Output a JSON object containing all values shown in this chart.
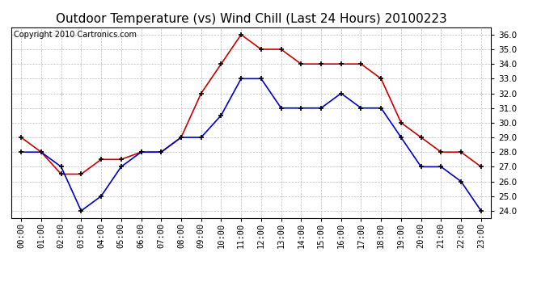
{
  "title": "Outdoor Temperature (vs) Wind Chill (Last 24 Hours) 20100223",
  "copyright": "Copyright 2010 Cartronics.com",
  "hours": [
    "00:00",
    "01:00",
    "02:00",
    "03:00",
    "04:00",
    "05:00",
    "06:00",
    "07:00",
    "08:00",
    "09:00",
    "10:00",
    "11:00",
    "12:00",
    "13:00",
    "14:00",
    "15:00",
    "16:00",
    "17:00",
    "18:00",
    "19:00",
    "20:00",
    "21:00",
    "22:00",
    "23:00"
  ],
  "temp": [
    28.0,
    28.0,
    27.0,
    24.0,
    25.0,
    27.0,
    28.0,
    28.0,
    29.0,
    29.0,
    30.5,
    33.0,
    33.0,
    31.0,
    31.0,
    31.0,
    32.0,
    31.0,
    31.0,
    29.0,
    27.0,
    27.0,
    26.0,
    24.0
  ],
  "wind_chill": [
    29.0,
    28.0,
    26.5,
    26.5,
    27.5,
    27.5,
    28.0,
    28.0,
    29.0,
    32.0,
    34.0,
    36.0,
    35.0,
    35.0,
    34.0,
    34.0,
    34.0,
    34.0,
    33.0,
    30.0,
    29.0,
    28.0,
    28.0,
    27.0
  ],
  "temp_color": "#0000cc",
  "wind_chill_color": "#cc0000",
  "bg_color": "#ffffff",
  "grid_color": "#bbbbbb",
  "ylim": [
    23.5,
    36.5
  ],
  "yticks": [
    24.0,
    25.0,
    26.0,
    27.0,
    28.0,
    29.0,
    30.0,
    31.0,
    32.0,
    33.0,
    34.0,
    35.0,
    36.0
  ],
  "title_fontsize": 11,
  "copyright_fontsize": 7,
  "axis_fontsize": 7.5
}
